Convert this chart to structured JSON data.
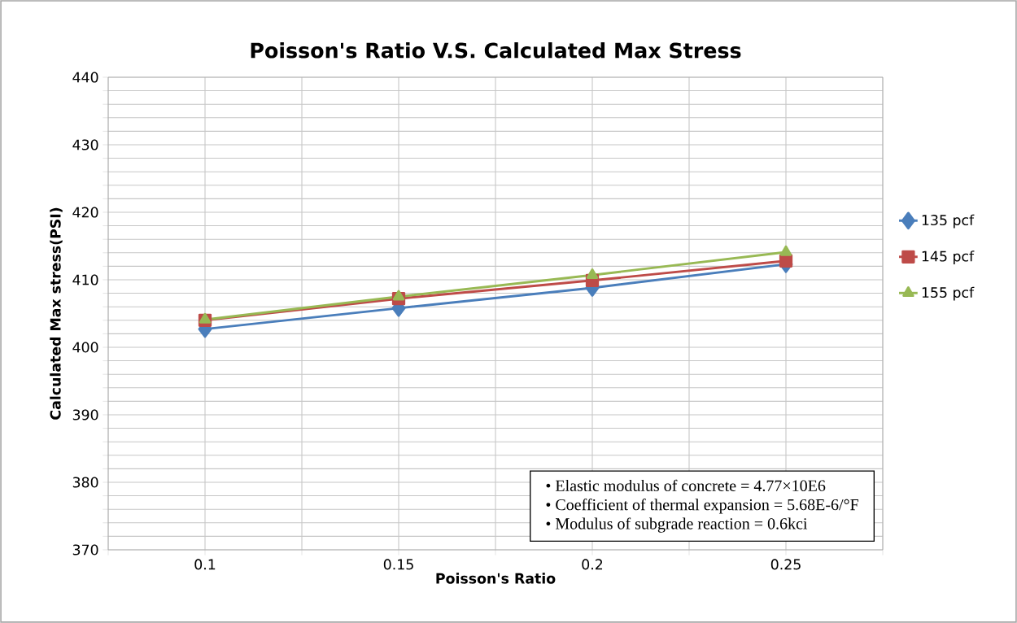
{
  "chart_data": {
    "type": "line",
    "title": "Poisson's Ratio V.S. Calculated Max Stress",
    "xlabel": "Poisson's Ratio",
    "ylabel": "Calculated Max stress(PSI)",
    "x": [
      0.1,
      0.15,
      0.2,
      0.25
    ],
    "series": [
      {
        "name": "135 pcf",
        "color": "#4a7ebb",
        "marker": "diamond",
        "values": [
          402.7,
          405.8,
          408.8,
          412.3
        ]
      },
      {
        "name": "145 pcf",
        "color": "#be4b48",
        "marker": "square",
        "values": [
          404.0,
          407.2,
          409.9,
          412.8
        ]
      },
      {
        "name": "155 pcf",
        "color": "#98b954",
        "marker": "triangle",
        "values": [
          404.1,
          407.5,
          410.7,
          414.1
        ]
      }
    ],
    "xlim": [
      0.075,
      0.275
    ],
    "xticks": [
      {
        "value": 0.075,
        "label": null
      },
      0.1,
      {
        "value": 0.125,
        "label": null
      },
      0.15,
      {
        "value": 0.175,
        "label": null
      },
      0.2,
      {
        "value": 0.225,
        "label": null
      },
      0.25,
      {
        "value": 0.275,
        "label": null
      }
    ],
    "ylim": [
      370,
      440
    ],
    "yticks": [
      370,
      {
        "value": 372,
        "label": null
      },
      {
        "value": 374,
        "label": null
      },
      {
        "value": 376,
        "label": null
      },
      {
        "value": 378,
        "label": null
      },
      380,
      {
        "value": 382,
        "label": null
      },
      {
        "value": 384,
        "label": null
      },
      {
        "value": 386,
        "label": null
      },
      {
        "value": 388,
        "label": null
      },
      390,
      {
        "value": 392,
        "label": null
      },
      {
        "value": 394,
        "label": null
      },
      {
        "value": 396,
        "label": null
      },
      {
        "value": 398,
        "label": null
      },
      400,
      {
        "value": 402,
        "label": null
      },
      {
        "value": 404,
        "label": null
      },
      {
        "value": 406,
        "label": null
      },
      {
        "value": 408,
        "label": null
      },
      410,
      {
        "value": 412,
        "label": null
      },
      {
        "value": 414,
        "label": null
      },
      {
        "value": 416,
        "label": null
      },
      {
        "value": 418,
        "label": null
      },
      420,
      {
        "value": 422,
        "label": null
      },
      {
        "value": 424,
        "label": null
      },
      {
        "value": 426,
        "label": null
      },
      {
        "value": 428,
        "label": null
      },
      430,
      {
        "value": 432,
        "label": null
      },
      {
        "value": 434,
        "label": null
      },
      {
        "value": 436,
        "label": null
      },
      {
        "value": 438,
        "label": null
      },
      440
    ],
    "grid": true,
    "legend": "right",
    "annotations": [
      "• Elastic modulus of concrete = 4.77×10E6",
      "• Coefficient of thermal expansion = 5.68E-6/°F",
      "• Modulus of subgrade reaction = 0.6kci"
    ]
  }
}
